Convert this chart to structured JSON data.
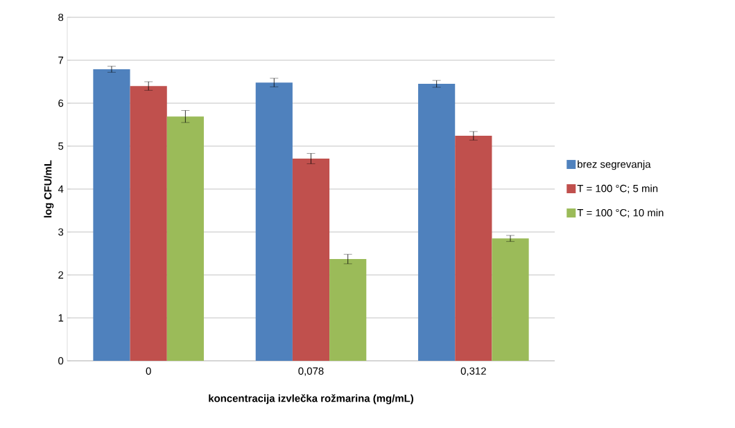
{
  "chart_data": {
    "type": "bar",
    "xlabel": "koncentracija izvlečka rožmarina (mg/mL)",
    "ylabel": "log CFU/mL",
    "categories": [
      "0",
      "0,078",
      "0,312"
    ],
    "series": [
      {
        "name": "brez segrevanja",
        "color": "#4f81bd",
        "values": [
          6.79,
          6.48,
          6.45
        ],
        "errors": [
          0.07,
          0.1,
          0.08
        ]
      },
      {
        "name": "T = 100 °C; 5 min",
        "color": "#c0504d",
        "values": [
          6.4,
          4.71,
          5.24
        ],
        "errors": [
          0.1,
          0.12,
          0.1
        ]
      },
      {
        "name": "T = 100 °C; 10 min",
        "color": "#9bbb59",
        "values": [
          5.69,
          2.37,
          2.85
        ],
        "errors": [
          0.14,
          0.11,
          0.07
        ]
      }
    ],
    "ylim": [
      0,
      8
    ],
    "yticks": [
      0,
      1,
      2,
      3,
      4,
      5,
      6,
      7,
      8
    ],
    "grid": "y",
    "legend": "right"
  }
}
